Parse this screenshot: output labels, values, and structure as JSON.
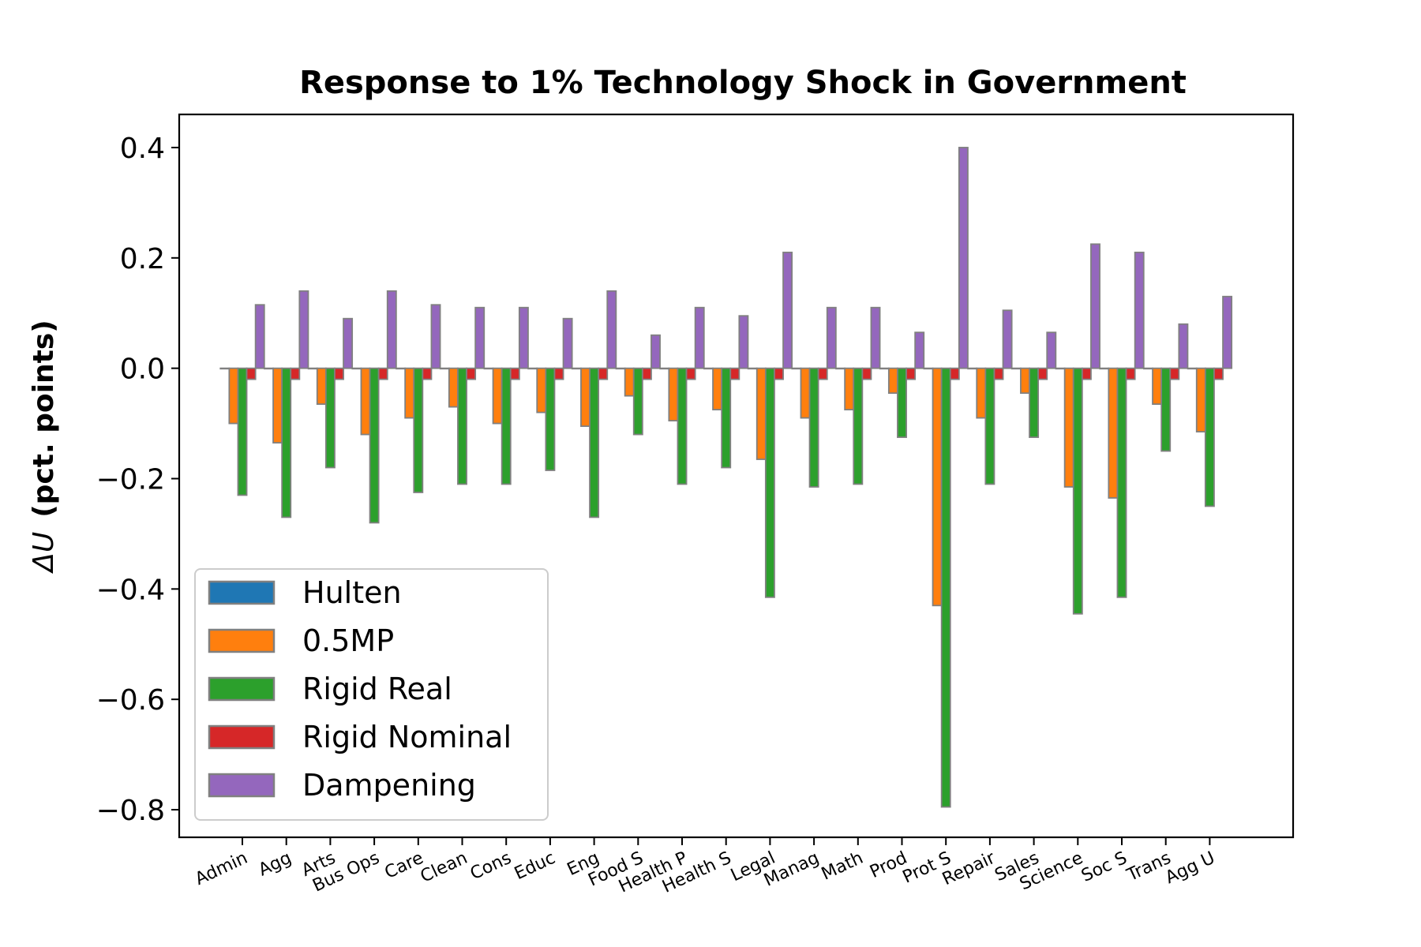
{
  "chart_data": {
    "type": "bar",
    "title": "Response to 1% Technology Shock in Government",
    "xlabel": "",
    "ylabel": "ΔU  (pct. points)",
    "ylabel_symbol": "ΔU",
    "ylabel_units": "(pct. points)",
    "ylim": [
      -0.85,
      0.46
    ],
    "yticks": [
      0.4,
      0.2,
      0.0,
      -0.2,
      -0.4,
      -0.6,
      -0.8
    ],
    "ytick_labels": [
      "0.4",
      "0.2",
      "0.0",
      "−0.2",
      "−0.4",
      "−0.6",
      "−0.8"
    ],
    "grid": false,
    "legend_position": "lower-left",
    "categories": [
      "Admin",
      "Agg",
      "Arts",
      "Bus Ops",
      "Care",
      "Clean",
      "Cons",
      "Educ",
      "Eng",
      "Food S",
      "Health P",
      "Health S",
      "Legal",
      "Manag",
      "Math",
      "Prod",
      "Prot S",
      "Repair",
      "Sales",
      "Science",
      "Soc S",
      "Trans",
      "Agg U"
    ],
    "series": [
      {
        "name": "Hulten",
        "color": "#1f77b4",
        "values": [
          0,
          0,
          0,
          0,
          0,
          0,
          0,
          0,
          0,
          0,
          0,
          0,
          0,
          0,
          0,
          0,
          0,
          0,
          0,
          0,
          0,
          0,
          0
        ]
      },
      {
        "name": "0.5MP",
        "color": "#ff7f0e",
        "values": [
          -0.1,
          -0.135,
          -0.065,
          -0.12,
          -0.09,
          -0.07,
          -0.1,
          -0.08,
          -0.105,
          -0.05,
          -0.095,
          -0.075,
          -0.165,
          -0.09,
          -0.075,
          -0.045,
          -0.43,
          -0.09,
          -0.045,
          -0.215,
          -0.235,
          -0.065,
          -0.115
        ]
      },
      {
        "name": "Rigid Real",
        "color": "#2ca02c",
        "values": [
          -0.23,
          -0.27,
          -0.18,
          -0.28,
          -0.225,
          -0.21,
          -0.21,
          -0.185,
          -0.27,
          -0.12,
          -0.21,
          -0.18,
          -0.415,
          -0.215,
          -0.21,
          -0.125,
          -0.795,
          -0.21,
          -0.125,
          -0.445,
          -0.415,
          -0.15,
          -0.25
        ]
      },
      {
        "name": "Rigid Nominal",
        "color": "#d62728",
        "values": [
          -0.02,
          -0.02,
          -0.02,
          -0.02,
          -0.02,
          -0.02,
          -0.02,
          -0.02,
          -0.02,
          -0.02,
          -0.02,
          -0.02,
          -0.02,
          -0.02,
          -0.02,
          -0.02,
          -0.02,
          -0.02,
          -0.02,
          -0.02,
          -0.02,
          -0.02,
          -0.02
        ]
      },
      {
        "name": "Dampening",
        "color": "#9467bd",
        "values": [
          0.115,
          0.14,
          0.09,
          0.14,
          0.115,
          0.11,
          0.11,
          0.09,
          0.14,
          0.06,
          0.11,
          0.095,
          0.21,
          0.11,
          0.11,
          0.065,
          0.4,
          0.105,
          0.065,
          0.225,
          0.21,
          0.08,
          0.13
        ]
      }
    ]
  }
}
